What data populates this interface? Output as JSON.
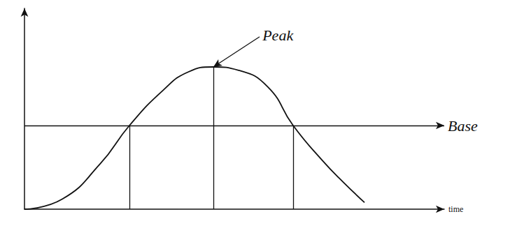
{
  "chart_data": {
    "type": "line",
    "x": [
      0,
      0.9,
      1.8,
      2.5,
      3.3,
      3.9,
      4.5,
      5.1,
      5.8,
      6.4,
      7.1,
      7.6,
      8.1
    ],
    "values": [
      0,
      0.6,
      2.7,
      5,
      7.1,
      8.2,
      8.5,
      8.3,
      7.3,
      5,
      2.9,
      1.6,
      0.4
    ],
    "color": "#111111",
    "xlim": [
      0,
      10
    ],
    "ylim": [
      0,
      12
    ],
    "xticks": [],
    "yticks": [],
    "tick_labels": false,
    "grid": false,
    "x_label": "time",
    "base": {
      "label": "Base",
      "y": 5
    },
    "peak": {
      "label": "Peak",
      "x": 4.5,
      "y": 8.5,
      "label_x": 5.6,
      "label_y": 10.3
    },
    "verticals": [
      {
        "x": 2.5,
        "y": 5
      },
      {
        "x": 4.5,
        "y": 8.5
      },
      {
        "x": 6.4,
        "y": 5
      }
    ]
  }
}
